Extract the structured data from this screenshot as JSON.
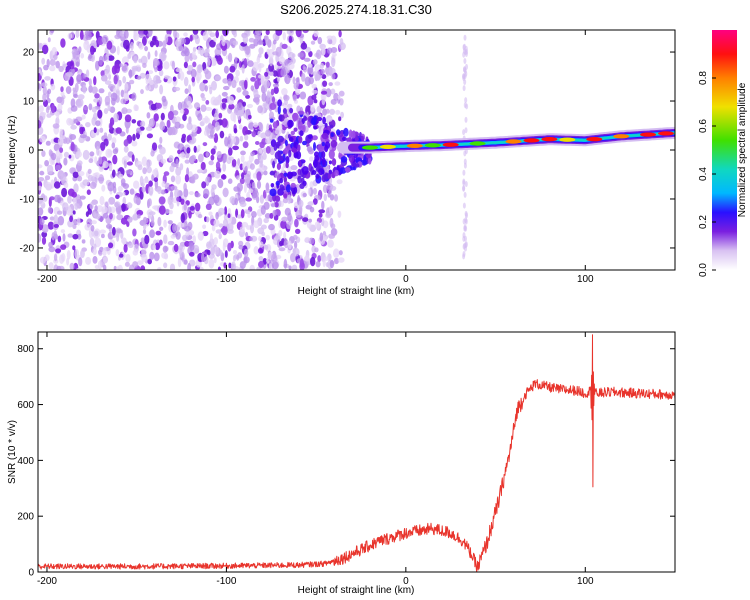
{
  "title": "S206.2025.274.18.31.C30",
  "colors": {
    "snr_line": "#e8342c",
    "colormap": [
      "#ffffff",
      "#d9c2f2",
      "#a060e6",
      "#7a1fe0",
      "#2a10ff",
      "#00b8ff",
      "#10d8c0",
      "#40e000",
      "#f0e000",
      "#ff8000",
      "#ff1010",
      "#ff0080"
    ]
  },
  "chart_data": [
    {
      "type": "heatmap",
      "title": "S206.2025.274.18.31.C30",
      "xlabel": "Height of straight line (km)",
      "ylabel": "Frequency (Hz)",
      "xlim": [
        -205,
        150
      ],
      "ylim": [
        -24.5,
        24.5
      ],
      "xticks": [
        -200,
        -100,
        0,
        100
      ],
      "yticks": [
        -20,
        -10,
        0,
        10,
        20
      ],
      "colorbar": {
        "label": "Normalized spectral amplitude",
        "range": [
          0.0,
          1.0
        ],
        "ticks": [
          0.0,
          0.2,
          0.4,
          0.6,
          0.8
        ]
      },
      "ridge": [
        {
          "x": -40,
          "freq": 0.5
        },
        {
          "x": -20,
          "freq": 0.5
        },
        {
          "x": 0,
          "freq": 0.8
        },
        {
          "x": 20,
          "freq": 1.0
        },
        {
          "x": 50,
          "freq": 1.5
        },
        {
          "x": 80,
          "freq": 2.2
        },
        {
          "x": 100,
          "freq": 2.0
        },
        {
          "x": 120,
          "freq": 2.8
        },
        {
          "x": 150,
          "freq": 3.5
        }
      ]
    },
    {
      "type": "line",
      "xlabel": "Height of straight line (km)",
      "ylabel": "SNR (10 * v/v)",
      "xlim": [
        -205,
        150
      ],
      "ylim": [
        0,
        860
      ],
      "xticks": [
        -200,
        -100,
        0,
        100
      ],
      "yticks": [
        0,
        200,
        400,
        600,
        800
      ],
      "series": [
        {
          "name": "SNR",
          "x": [
            -205,
            -150,
            -100,
            -60,
            -45,
            -35,
            -25,
            -15,
            0,
            15,
            25,
            32,
            36,
            40,
            45,
            52,
            58,
            62,
            67,
            72,
            78,
            85,
            95,
            100,
            103,
            106,
            115,
            130,
            150
          ],
          "y": [
            20,
            20,
            22,
            25,
            30,
            50,
            80,
            110,
            140,
            155,
            140,
            110,
            70,
            15,
            100,
            260,
            430,
            580,
            640,
            675,
            665,
            655,
            650,
            640,
            650,
            640,
            645,
            640,
            635
          ]
        }
      ],
      "annotations": [
        {
          "x": 104,
          "max": 850,
          "min": 305
        }
      ]
    }
  ]
}
